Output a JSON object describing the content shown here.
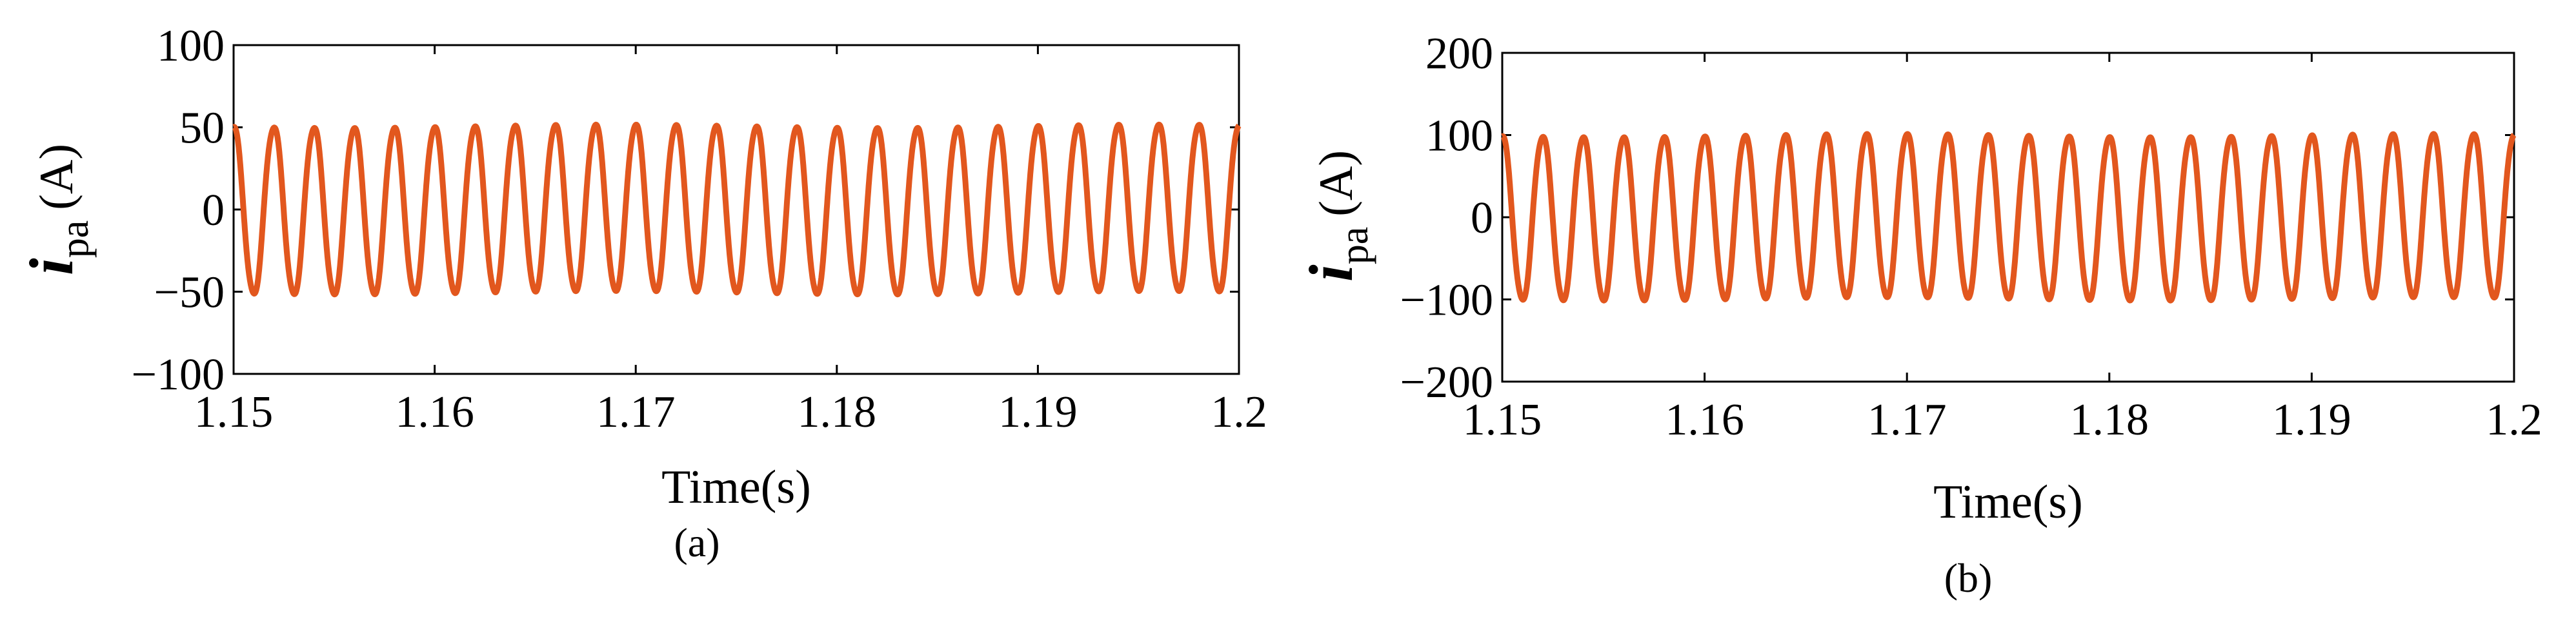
{
  "chart_data": [
    {
      "type": "line",
      "panel_label": "(a)",
      "xlabel": "Time(s)",
      "ylabel": {
        "symbol": "i",
        "subscript": "pa",
        "unit": "(A)"
      },
      "xlim": [
        1.15,
        1.2
      ],
      "ylim": [
        -100,
        100
      ],
      "xticks": [
        1.15,
        1.16,
        1.17,
        1.18,
        1.19,
        1.2
      ],
      "xtick_labels": [
        "1.15",
        "1.16",
        "1.17",
        "1.18",
        "1.19",
        "1.2"
      ],
      "yticks": [
        100,
        50,
        0,
        -50,
        -100
      ],
      "ytick_labels": [
        "100",
        "50",
        "0",
        "−50",
        "−100"
      ],
      "series": [
        {
          "color": "#e2571e",
          "waveform": "sinusoid",
          "frequency_hz": 500,
          "amplitude": 52,
          "x_start": 1.15,
          "x_end": 1.2
        }
      ]
    },
    {
      "type": "line",
      "panel_label": "(b)",
      "xlabel": "Time(s)",
      "ylabel": {
        "symbol": "i",
        "subscript": "pa",
        "unit": "(A)"
      },
      "xlim": [
        1.15,
        1.2
      ],
      "ylim": [
        -200,
        200
      ],
      "xticks": [
        1.15,
        1.16,
        1.17,
        1.18,
        1.19,
        1.2
      ],
      "xtick_labels": [
        "1.15",
        "1.16",
        "1.17",
        "1.18",
        "1.19",
        "1.2"
      ],
      "yticks": [
        200,
        100,
        0,
        -100,
        -200
      ],
      "ytick_labels": [
        "200",
        "100",
        "0",
        "−100",
        "−200"
      ],
      "series": [
        {
          "color": "#e2571e",
          "waveform": "sinusoid",
          "frequency_hz": 500,
          "amplitude": 102,
          "x_start": 1.15,
          "x_end": 1.2
        }
      ]
    }
  ]
}
